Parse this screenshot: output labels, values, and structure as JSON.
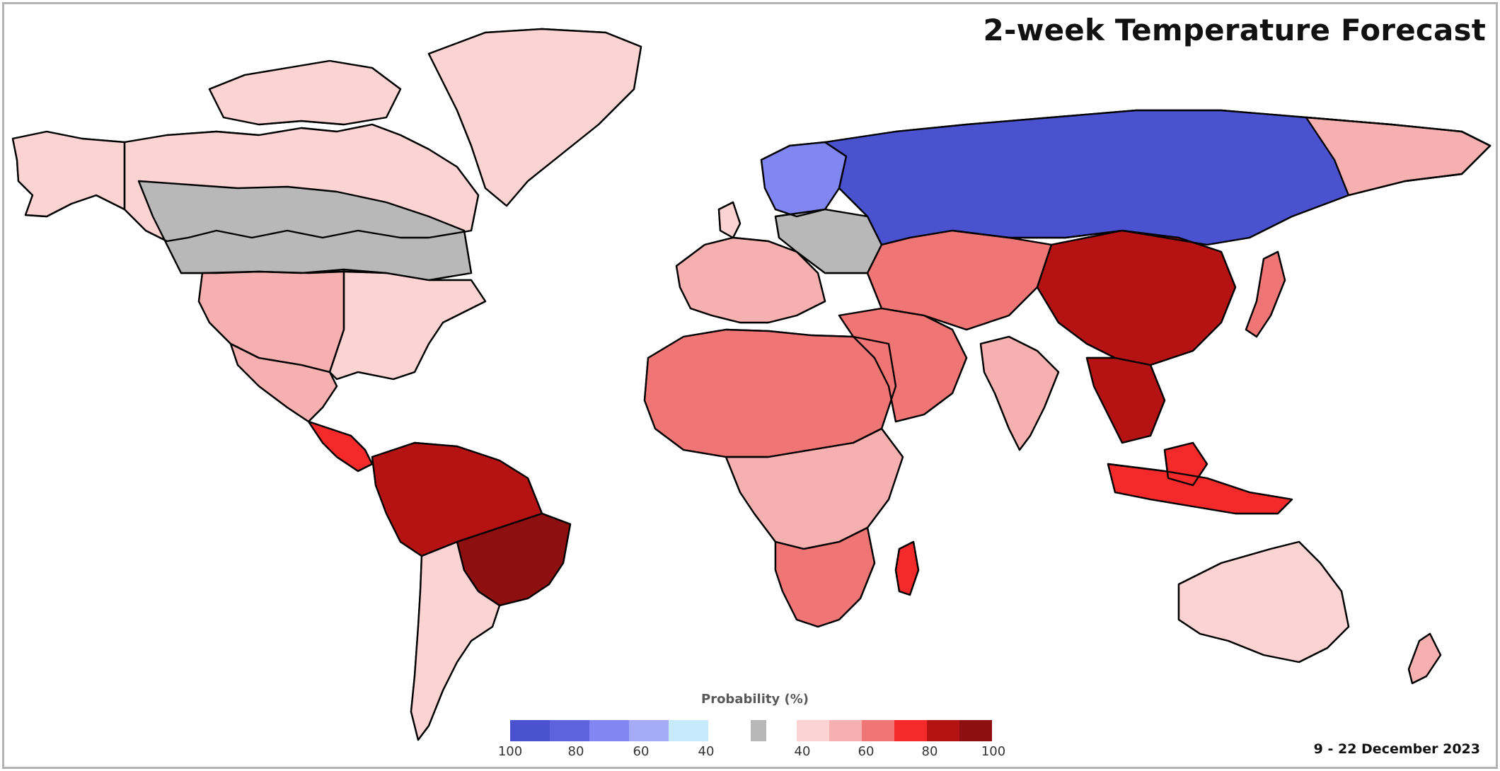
{
  "title": "2-week Temperature Forecast",
  "date_range": "9 - 22 December 2023",
  "legend": {
    "title": "Probability (%)",
    "below_normal": {
      "colors": [
        "#4b52cf",
        "#5c63dd",
        "#8086f2",
        "#a6abf7",
        "#c7ebfb"
      ],
      "ticks": [
        "100",
        "80",
        "60",
        "40"
      ]
    },
    "near_normal": {
      "color": "#b8b8b8"
    },
    "above_normal": {
      "colors": [
        "#fbd3d3",
        "#f6b0b0",
        "#f07676",
        "#f42a2a",
        "#b51313",
        "#8e0f0f"
      ],
      "ticks": [
        "40",
        "60",
        "80",
        "100"
      ]
    }
  },
  "map_regions": [
    {
      "name": "alaska",
      "category": "above",
      "level": 1
    },
    {
      "name": "canada-north",
      "category": "above",
      "level": 1
    },
    {
      "name": "canada-central",
      "category": "near",
      "level": 0
    },
    {
      "name": "greenland",
      "category": "above",
      "level": 1
    },
    {
      "name": "usa-west",
      "category": "above",
      "level": 2
    },
    {
      "name": "usa-east",
      "category": "above",
      "level": 1
    },
    {
      "name": "mexico",
      "category": "above",
      "level": 2
    },
    {
      "name": "central-america",
      "category": "above",
      "level": 4
    },
    {
      "name": "south-america-north",
      "category": "above",
      "level": 5
    },
    {
      "name": "brazil",
      "category": "above",
      "level": 6
    },
    {
      "name": "south-america-south",
      "category": "above",
      "level": 1
    },
    {
      "name": "europe-west",
      "category": "above",
      "level": 2
    },
    {
      "name": "scandinavia",
      "category": "below",
      "level": 3
    },
    {
      "name": "eastern-europe",
      "category": "near",
      "level": 0
    },
    {
      "name": "russia",
      "category": "below",
      "level": 5
    },
    {
      "name": "north-africa",
      "category": "above",
      "level": 3
    },
    {
      "name": "central-africa",
      "category": "above",
      "level": 2
    },
    {
      "name": "southern-africa",
      "category": "above",
      "level": 3
    },
    {
      "name": "madagascar",
      "category": "above",
      "level": 4
    },
    {
      "name": "middle-east",
      "category": "above",
      "level": 3
    },
    {
      "name": "central-asia",
      "category": "above",
      "level": 3
    },
    {
      "name": "india",
      "category": "above",
      "level": 2
    },
    {
      "name": "china",
      "category": "above",
      "level": 5
    },
    {
      "name": "southeast-asia",
      "category": "above",
      "level": 5
    },
    {
      "name": "indonesia",
      "category": "above",
      "level": 4
    },
    {
      "name": "east-siberia",
      "category": "above",
      "level": 2
    },
    {
      "name": "japan",
      "category": "above",
      "level": 3
    },
    {
      "name": "australia",
      "category": "above",
      "level": 1
    },
    {
      "name": "new-zealand",
      "category": "above",
      "level": 2
    }
  ]
}
